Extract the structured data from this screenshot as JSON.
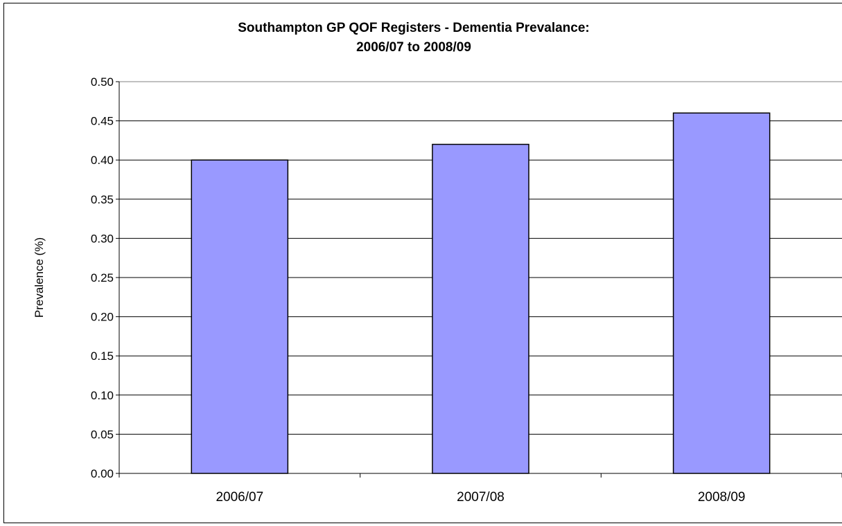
{
  "chart_data": {
    "type": "bar",
    "title_line1": "Southampton GP QOF Registers - Dementia Prevalance:",
    "title_line2": "2006/07 to 2008/09",
    "ylabel": "Prevalence (%)",
    "xlabel": "",
    "categories": [
      "2006/07",
      "2007/08",
      "2008/09"
    ],
    "values": [
      0.4,
      0.42,
      0.46
    ],
    "ylim": [
      0,
      0.5
    ],
    "yticks": [
      "0.00",
      "0.05",
      "0.10",
      "0.15",
      "0.20",
      "0.25",
      "0.30",
      "0.35",
      "0.40",
      "0.45",
      "0.50"
    ],
    "grid": true,
    "legend": "none",
    "bar_color": "#9999FF",
    "bar_stroke": "#000000"
  }
}
